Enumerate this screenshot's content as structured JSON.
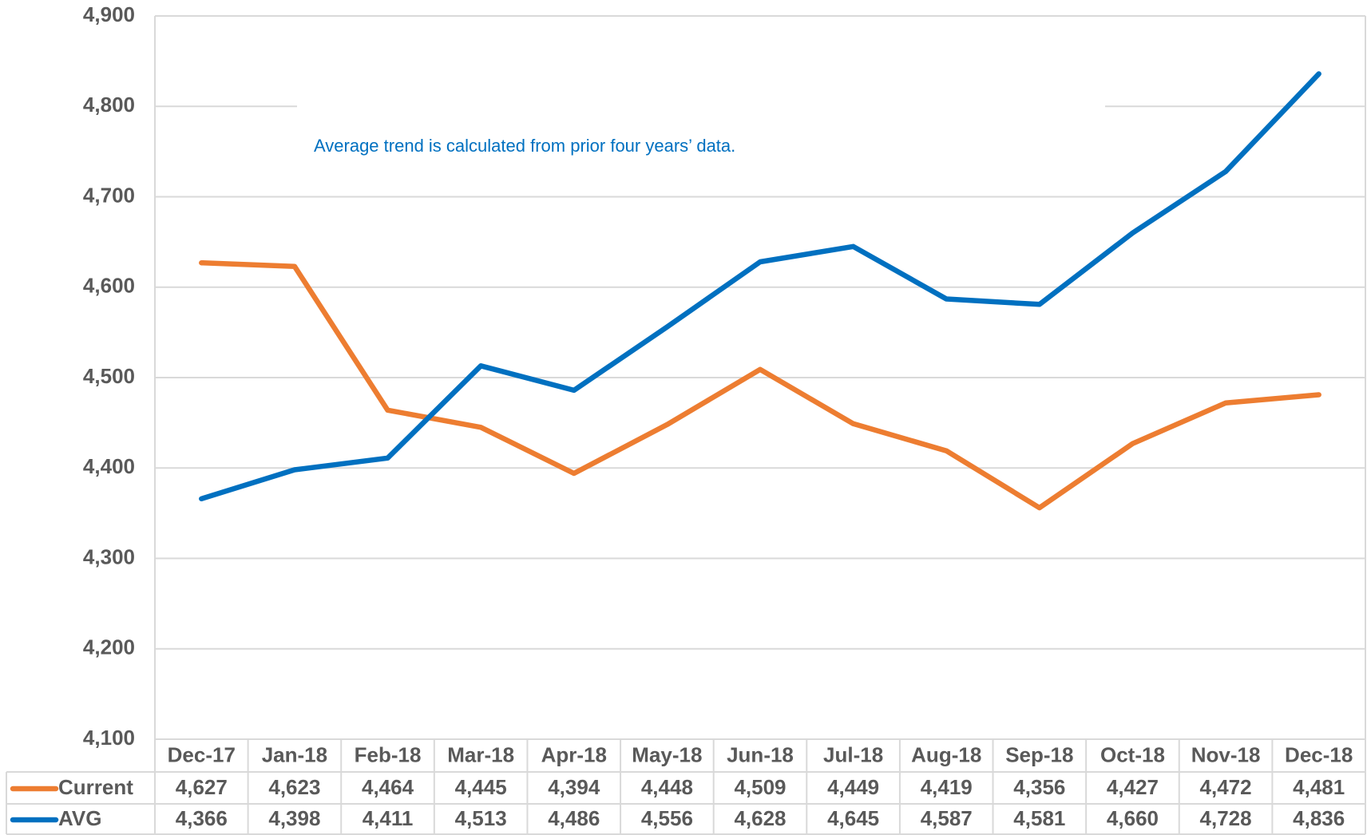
{
  "chart_data": {
    "type": "line",
    "annotation": "Average trend is calculated from prior four years’ data.",
    "categories": [
      "Dec-17",
      "Jan-18",
      "Feb-18",
      "Mar-18",
      "Apr-18",
      "May-18",
      "Jun-18",
      "Jul-18",
      "Aug-18",
      "Sep-18",
      "Oct-18",
      "Nov-18",
      "Dec-18"
    ],
    "series": [
      {
        "name": "Current",
        "color": "#ed7d31",
        "values": [
          4627,
          4623,
          4464,
          4445,
          4394,
          4448,
          4509,
          4449,
          4419,
          4356,
          4427,
          4472,
          4481
        ],
        "value_labels": [
          "4,627",
          "4,623",
          "4,464",
          "4,445",
          "4,394",
          "4,448",
          "4,509",
          "4,449",
          "4,419",
          "4,356",
          "4,427",
          "4,472",
          "4,481"
        ]
      },
      {
        "name": "AVG",
        "color": "#0070c0",
        "values": [
          4366,
          4398,
          4411,
          4513,
          4486,
          4556,
          4628,
          4645,
          4587,
          4581,
          4660,
          4728,
          4836
        ],
        "value_labels": [
          "4,366",
          "4,398",
          "4,411",
          "4,513",
          "4,486",
          "4,556",
          "4,628",
          "4,645",
          "4,587",
          "4,581",
          "4,660",
          "4,728",
          "4,836"
        ]
      }
    ],
    "ylim": [
      4100,
      4900
    ],
    "yticks": [
      {
        "value": 4100,
        "label": "4,100"
      },
      {
        "value": 4200,
        "label": "4,200"
      },
      {
        "value": 4300,
        "label": "4,300"
      },
      {
        "value": 4400,
        "label": "4,400"
      },
      {
        "value": 4500,
        "label": "4,500"
      },
      {
        "value": 4600,
        "label": "4,600"
      },
      {
        "value": 4700,
        "label": "4,700"
      },
      {
        "value": 4800,
        "label": "4,800"
      },
      {
        "value": 4900,
        "label": "4,900"
      }
    ],
    "grid": true,
    "data_table": true
  }
}
